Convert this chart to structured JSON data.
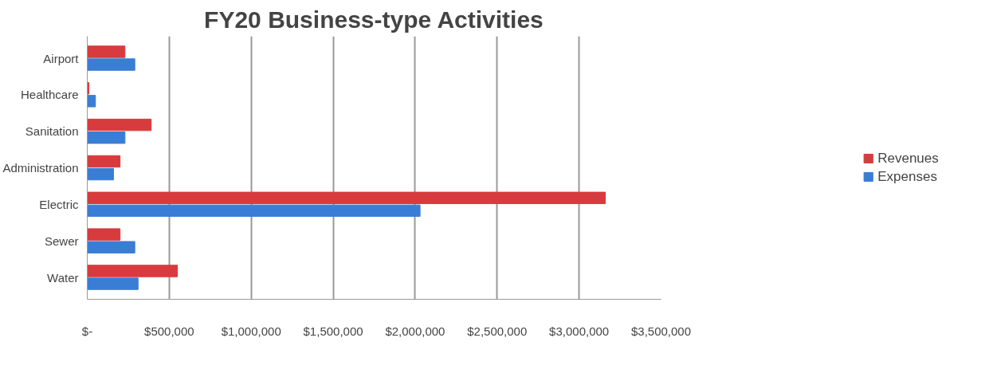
{
  "chart_data": {
    "type": "bar",
    "orientation": "horizontal",
    "title": "FY20 Business-type Activities",
    "categories": [
      "Airport",
      "Healthcare",
      "Sanitation",
      "Administration",
      "Electric",
      "Sewer",
      "Water"
    ],
    "series": [
      {
        "name": "Revenues",
        "color": "#d73b3e",
        "values": [
          230000,
          10000,
          390000,
          200000,
          3160000,
          200000,
          550000
        ]
      },
      {
        "name": "Expenses",
        "color": "#3a7dd4",
        "values": [
          290000,
          50000,
          230000,
          160000,
          2030000,
          290000,
          310000
        ]
      }
    ],
    "xlim": [
      0,
      3500000
    ],
    "xticks": [
      {
        "value": 0,
        "label": "$-"
      },
      {
        "value": 500000,
        "label": "$500,000"
      },
      {
        "value": 1000000,
        "label": "$1,000,000"
      },
      {
        "value": 1500000,
        "label": "$1,500,000"
      },
      {
        "value": 2000000,
        "label": "$2,000,000"
      },
      {
        "value": 2500000,
        "label": "$2,500,000"
      },
      {
        "value": 3000000,
        "label": "$3,000,000"
      },
      {
        "value": 3500000,
        "label": "$3,500,000"
      }
    ],
    "grid": "x",
    "legend": "right"
  }
}
